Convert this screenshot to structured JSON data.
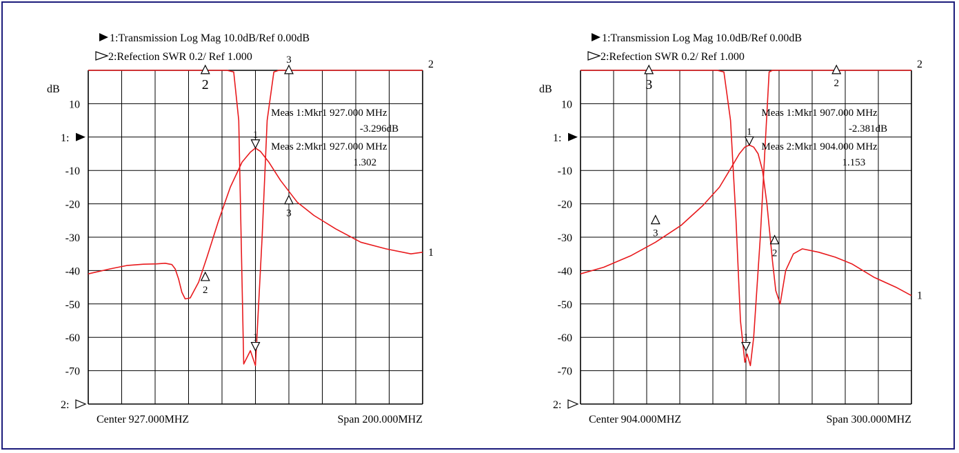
{
  "chart_data": [
    {
      "type": "line",
      "header": {
        "trace1_label": "1:Transmission Log Mag 10.0dB/Ref 0.00dB",
        "trace2_label": "2:Refection  SWR   0.2/   Ref      1.000"
      },
      "ylabel": "dB",
      "ylim": [
        -80,
        20
      ],
      "yticks": [
        10,
        -10,
        -20,
        -30,
        -40,
        -50,
        -60,
        -70
      ],
      "y_ticks": [
        "10",
        "-10",
        "-20",
        "-30",
        "-40",
        "-50",
        "-60",
        "-70"
      ],
      "ref1_label": "1:",
      "ref2_label": "2:",
      "center_label": "Center 927.000MHZ",
      "span_label": "Span 200.000MHZ",
      "center_mhz": 927,
      "span_mhz": 200,
      "grid": true,
      "meas": [
        "Meas 1:Mkr1 927.000 MHz",
        "-3.296dB",
        "Meas 2:Mkr1 927.000 MHz",
        "1.302"
      ],
      "series": [
        {
          "id": "1",
          "color": "#e8191c",
          "x": [
            827,
            840,
            850,
            860,
            868,
            873,
            877,
            879,
            881,
            883,
            885,
            888,
            893,
            898,
            905,
            912,
            919,
            924,
            927,
            930,
            935,
            942,
            952,
            962,
            975,
            990,
            1005,
            1020,
            1027
          ],
          "values": [
            -41,
            -39.5,
            -38.5,
            -38.1,
            -38.0,
            -37.8,
            -38.2,
            -39.5,
            -42.5,
            -46.5,
            -48.5,
            -48.2,
            -43.5,
            -36,
            -25,
            -15,
            -7.5,
            -4.5,
            -3.3,
            -4.3,
            -7.5,
            -13,
            -19.5,
            -23.5,
            -27.5,
            -31.5,
            -33.5,
            -35,
            -34.5
          ],
          "end_label": "1"
        },
        {
          "id": "2",
          "color": "#e8191c",
          "x": [
            827,
            870,
            900,
            910,
            914,
            917,
            920,
            924,
            927,
            931,
            934,
            938,
            941,
            1027
          ],
          "values": [
            20,
            20,
            20,
            20,
            19.5,
            5,
            -68,
            -64,
            -68.5,
            -30,
            5,
            19.5,
            20,
            20
          ],
          "end_label": "2"
        }
      ],
      "markers": [
        {
          "label": "2",
          "x": 897,
          "y": 19,
          "dir": "up",
          "label_pos": "below-big"
        },
        {
          "label": "3",
          "x": 947,
          "y": 19,
          "dir": "up",
          "label_pos": "above"
        },
        {
          "label": "1",
          "x": 927,
          "y": -3.3,
          "dir": "down",
          "label_pos": "above"
        },
        {
          "label": "3",
          "x": 947,
          "y": -20,
          "dir": "up",
          "label_pos": "below"
        },
        {
          "label": "2",
          "x": 897,
          "y": -43,
          "dir": "up",
          "label_pos": "below"
        },
        {
          "label": "1",
          "x": 927,
          "y": -64,
          "dir": "down",
          "label_pos": "above"
        }
      ]
    },
    {
      "type": "line",
      "header": {
        "trace1_label": "1:Transmission Log Mag 10.0dB/Ref 0.00dB",
        "trace2_label": "2:Refection      SWR      0.2/      Ref         1.000"
      },
      "ylabel": "dB",
      "ylim": [
        -80,
        20
      ],
      "yticks": [
        10,
        -10,
        -20,
        -30,
        -40,
        -50,
        -60,
        -70
      ],
      "y_ticks": [
        "10",
        "-10",
        "-20",
        "-30",
        "-40",
        "-50",
        "-60",
        "-70"
      ],
      "ref1_label": "1:",
      "ref2_label": "2:",
      "center_label": "Center 904.000MHZ",
      "span_label": "Span 300.000MHZ",
      "center_mhz": 904,
      "span_mhz": 300,
      "grid": true,
      "meas": [
        "Meas 1:Mkr1 907.000 MHz",
        "-2.381dB",
        "Meas 2:Mkr1 904.000 MHz",
        "1.153"
      ],
      "series": [
        {
          "id": "1",
          "color": "#e8191c",
          "x": [
            754,
            775,
            800,
            822,
            845,
            865,
            880,
            890,
            898,
            903,
            907,
            911,
            915,
            919,
            923,
            928,
            931,
            935,
            940,
            947,
            955,
            970,
            985,
            1000,
            1020,
            1040,
            1054
          ],
          "values": [
            -41,
            -39,
            -35.5,
            -31.5,
            -26.5,
            -20.5,
            -15,
            -9.5,
            -5,
            -3,
            -2.4,
            -3,
            -5,
            -10,
            -20,
            -37,
            -46,
            -50,
            -40,
            -35,
            -33.5,
            -34.5,
            -36,
            -38,
            -42,
            -45,
            -47.5
          ],
          "end_label": "1"
        },
        {
          "id": "2",
          "color": "#e8191c",
          "x": [
            754,
            800,
            850,
            878,
            884,
            890,
            895,
            899,
            903,
            905,
            908,
            911,
            917,
            921,
            925,
            928,
            1054
          ],
          "values": [
            20,
            20,
            20,
            20,
            19.5,
            5,
            -25,
            -55,
            -67.5,
            -65,
            -68.5,
            -60,
            -30,
            -5,
            19.5,
            20,
            20
          ],
          "end_label": "2"
        }
      ],
      "markers": [
        {
          "label": "3",
          "x": 816,
          "y": 19,
          "dir": "up",
          "label_pos": "below-big"
        },
        {
          "label": "2",
          "x": 986,
          "y": 19,
          "dir": "up",
          "label_pos": "below"
        },
        {
          "label": "1",
          "x": 907,
          "y": -2.4,
          "dir": "down",
          "label_pos": "above"
        },
        {
          "label": "3",
          "x": 822,
          "y": -26,
          "dir": "up",
          "label_pos": "below"
        },
        {
          "label": "2",
          "x": 930,
          "y": -32,
          "dir": "up",
          "label_pos": "below"
        },
        {
          "label": "1",
          "x": 904,
          "y": -64,
          "dir": "down",
          "label_pos": "above"
        }
      ]
    }
  ]
}
